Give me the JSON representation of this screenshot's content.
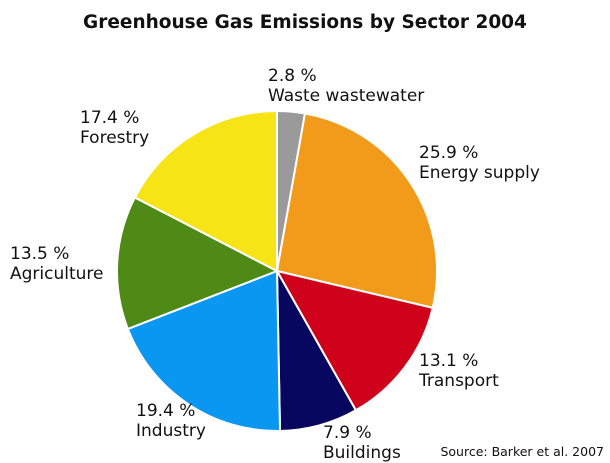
{
  "chart_data": {
    "type": "pie",
    "title": "Greenhouse Gas Emissions by Sector 2004",
    "slices": [
      {
        "label": "Waste wastewater",
        "value_label": "2.8 %",
        "value": 2.8,
        "color": "#9a9a9a"
      },
      {
        "label": "Energy supply",
        "value_label": "25.9 %",
        "value": 25.9,
        "color": "#f29a1a"
      },
      {
        "label": "Transport",
        "value_label": "13.1 %",
        "value": 13.1,
        "color": "#d0021b"
      },
      {
        "label": "Buildings",
        "value_label": "7.9 %",
        "value": 7.9,
        "color": "#070760"
      },
      {
        "label": "Industry",
        "value_label": "19.4 %",
        "value": 19.4,
        "color": "#0a97f2"
      },
      {
        "label": "Agriculture",
        "value_label": "13.5 %",
        "value": 13.5,
        "color": "#4f8a16"
      },
      {
        "label": "Forestry",
        "value_label": "17.4 %",
        "value": 17.4,
        "color": "#f7e417"
      }
    ],
    "source": "Source: Barker et al. 2007"
  }
}
